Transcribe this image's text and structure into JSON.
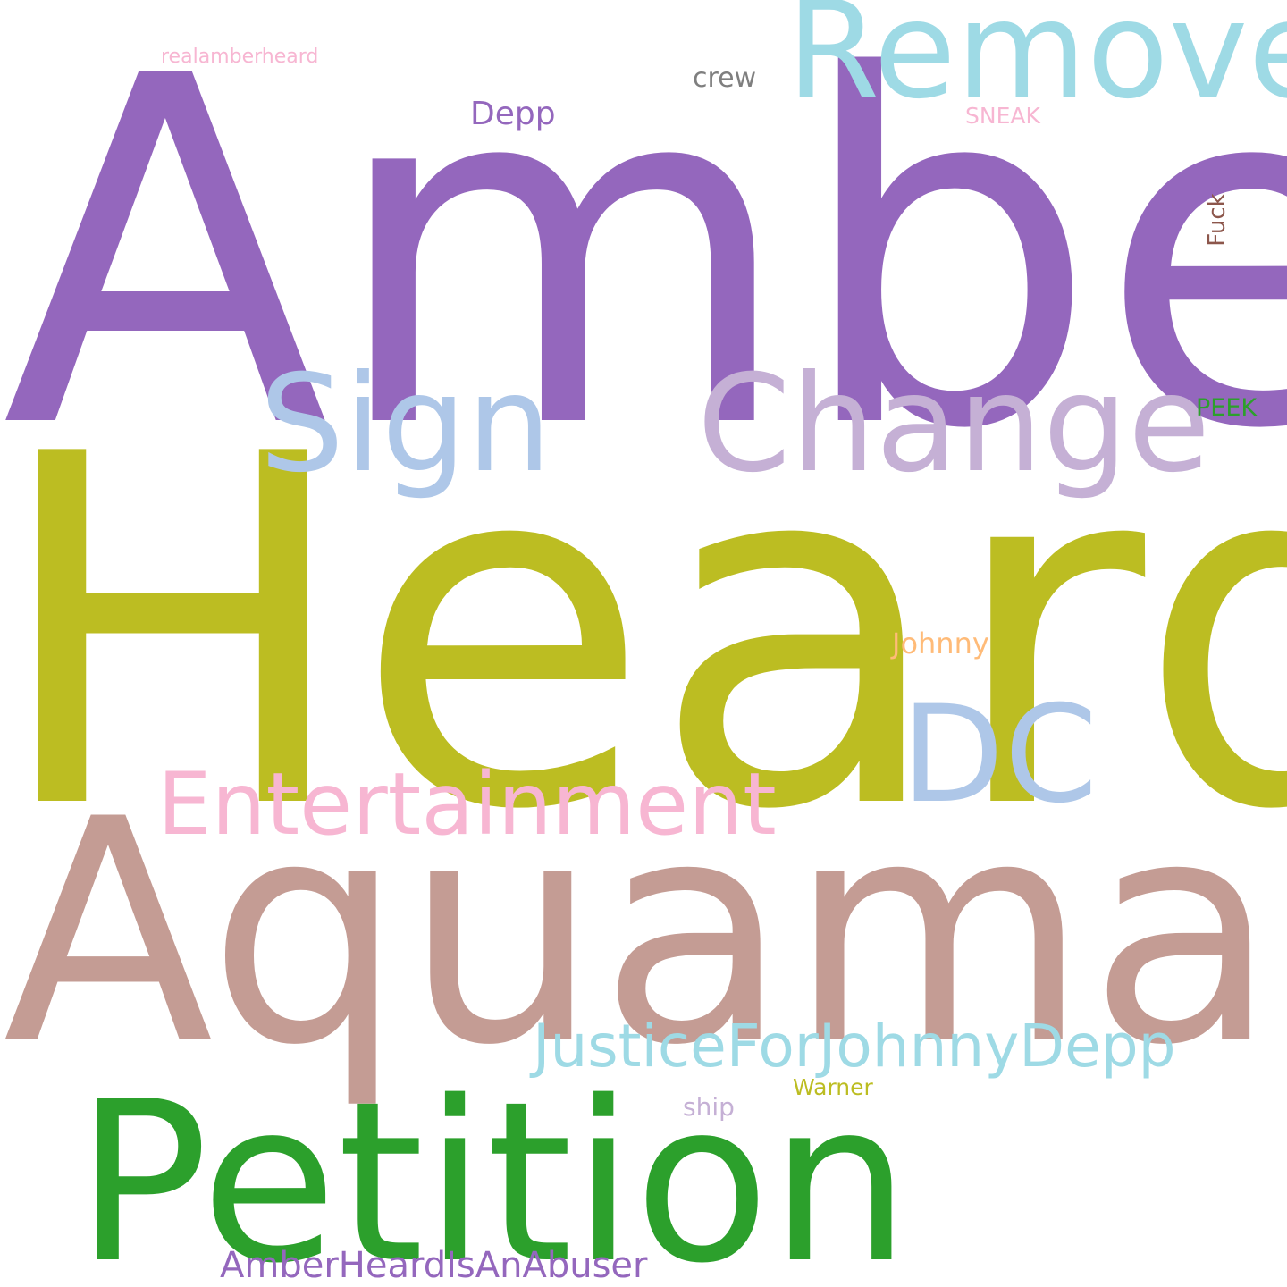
{
  "words": [
    {
      "text": "Amber",
      "color": "#9467bd"
    },
    {
      "text": "Heard",
      "color": "#bcbd22"
    },
    {
      "text": "Aquaman",
      "color": "#c49c94"
    },
    {
      "text": "Petition",
      "color": "#2ca02c"
    },
    {
      "text": "Remove",
      "color": "#9edae5"
    },
    {
      "text": "Sign",
      "color": "#aec7e8"
    },
    {
      "text": "Change",
      "color": "#c5b0d5"
    },
    {
      "text": "DC",
      "color": "#aec7e8"
    },
    {
      "text": "Entertainment",
      "color": "#f7b6d2"
    },
    {
      "text": "JusticeForJohnnyDepp",
      "color": "#9edae5"
    },
    {
      "text": "AmberHeardIsAnAbuser",
      "color": "#9467bd"
    },
    {
      "text": "realamberheard",
      "color": "#f7b6d2"
    },
    {
      "text": "crew",
      "color": "#7f7f7f"
    },
    {
      "text": "Depp",
      "color": "#9467bd"
    },
    {
      "text": "SNEAK",
      "color": "#f7b6d2"
    },
    {
      "text": "Fuck",
      "color": "#8c564b"
    },
    {
      "text": "PEEK",
      "color": "#2ca02c"
    },
    {
      "text": "Johnny",
      "color": "#ffbb78"
    },
    {
      "text": "Warner",
      "color": "#bcbd22"
    },
    {
      "text": "ship",
      "color": "#c5b0d5"
    }
  ]
}
